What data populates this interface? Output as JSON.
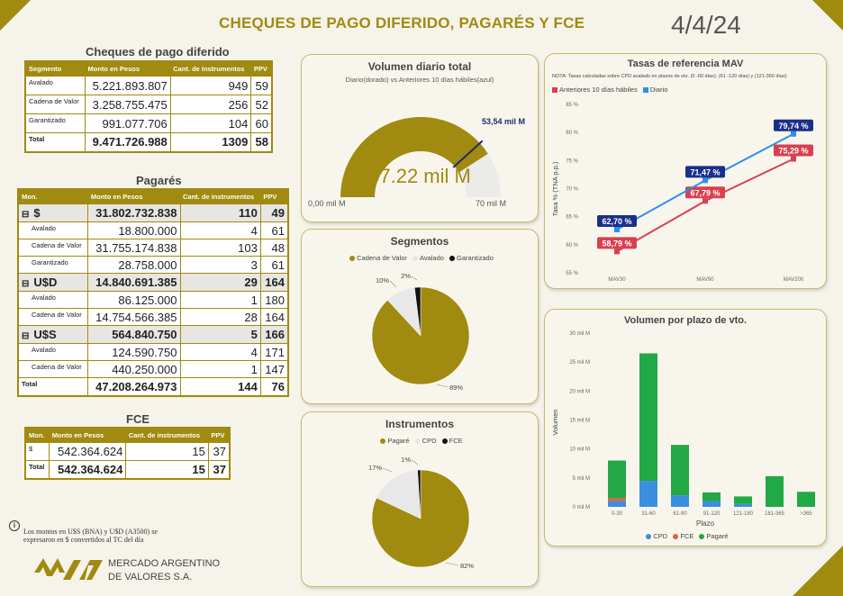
{
  "header": {
    "title": "CHEQUES DE PAGO DIFERIDO, PAGARÉS Y FCE",
    "date": "4/4/24"
  },
  "cpd": {
    "title": "Cheques de pago diferido",
    "headers": [
      "Segmento",
      "Monto en Pesos",
      "Cant. de Instrumentos",
      "PPV"
    ],
    "rows": [
      [
        "Avalado",
        "5.221.893.807",
        "949",
        "59"
      ],
      [
        "Cadena de Valor",
        "3.258.755.475",
        "256",
        "52"
      ],
      [
        "Garantizado",
        "991.077.706",
        "104",
        "60"
      ]
    ],
    "total": [
      "Total",
      "9.471.726.988",
      "1309",
      "58"
    ]
  },
  "pagares": {
    "title": "Pagarés",
    "headers": [
      "Mon.",
      "Monto en Pesos",
      "Cant. de instrumentos",
      "PPV"
    ],
    "groups": [
      {
        "label": "$",
        "amount": "31.802.732.838",
        "count": "110",
        "ppv": "49",
        "rows": [
          [
            "Avalado",
            "18.800.000",
            "4",
            "61"
          ],
          [
            "Cadena de Valor",
            "31.755.174.838",
            "103",
            "48"
          ],
          [
            "Garantizado",
            "28.758.000",
            "3",
            "61"
          ]
        ]
      },
      {
        "label": "U$D",
        "amount": "14.840.691.385",
        "count": "29",
        "ppv": "164",
        "rows": [
          [
            "Avalado",
            "86.125.000",
            "1",
            "180"
          ],
          [
            "Cadena de Valor",
            "14.754.566.385",
            "28",
            "164"
          ]
        ]
      },
      {
        "label": "U$S",
        "amount": "564.840.750",
        "count": "5",
        "ppv": "166",
        "rows": [
          [
            "Avalado",
            "124.590.750",
            "4",
            "171"
          ],
          [
            "Cadena de Valor",
            "440.250.000",
            "1",
            "147"
          ]
        ]
      }
    ],
    "total": [
      "Total",
      "47.208.264.973",
      "144",
      "76"
    ],
    "expand_glyph": "⊟"
  },
  "fce": {
    "title": "FCE",
    "headers": [
      "Mon.",
      "Monto en Pesos",
      "Cant. de instrumentos",
      "PPV"
    ],
    "rows": [
      [
        "$",
        "542.364.624",
        "15",
        "37"
      ]
    ],
    "total": [
      "Total",
      "542.364.624",
      "15",
      "37"
    ]
  },
  "gauge": {
    "title": "Volumen diario total",
    "subtitle": "Diario(dorado) vs Anteriores 10 días hábiles(azul)",
    "value": 57.22,
    "target": 53.54,
    "min": 0,
    "max": 70,
    "value_label": "57.22 mil M",
    "target_label": "53,54 mil M",
    "min_label": "0,00 mil M",
    "max_label": "70 mil M"
  },
  "segmentos": {
    "title": "Segmentos",
    "legend": [
      "Cadena de Valor",
      "Avalado",
      "Garantizado"
    ],
    "colors": [
      "#a08a10",
      "#e8e8e8",
      "#111111"
    ],
    "chart_data": {
      "type": "pie",
      "categories": [
        "Cadena de Valor",
        "Avalado",
        "Garantizado"
      ],
      "values": [
        89,
        10,
        2
      ],
      "labels": [
        "89%",
        "10%",
        "2%"
      ]
    }
  },
  "instrumentos": {
    "title": "Instrumentos",
    "legend": [
      "Pagaré",
      "CPD",
      "FCE"
    ],
    "colors": [
      "#a08a10",
      "#e8e8e8",
      "#111111"
    ],
    "chart_data": {
      "type": "pie",
      "categories": [
        "Pagaré",
        "CPD",
        "FCE"
      ],
      "values": [
        82,
        17,
        1
      ],
      "labels": [
        "82%",
        "17%",
        "1%"
      ]
    }
  },
  "tasas": {
    "title": "Tasas de referencia MAV",
    "note": "NOTA: Tasas calculadas sobre CPD avalado en plazos de vto. (0 -60 días); (61 -120 días) y (121-360 días)",
    "ylabel": "Tasa % (TNA p.p.)",
    "chart_data": {
      "type": "line",
      "categories": [
        "MAV30",
        "MAV90",
        "MAV200"
      ],
      "ylim": [
        55,
        85
      ],
      "yticks": [
        "55 %",
        "60 %",
        "65 %",
        "70 %",
        "75 %",
        "80 %",
        "85 %"
      ],
      "series": [
        {
          "name": "Anteriores 10 días hábiles",
          "values": [
            58.79,
            67.79,
            75.29
          ],
          "labels": [
            "58,79 %",
            "67,79 %",
            "75,29 %"
          ],
          "color": "#d8404f"
        },
        {
          "name": "Diario",
          "values": [
            62.7,
            71.47,
            79.74
          ],
          "labels": [
            "62,70 %",
            "71,47 %",
            "79,74 %"
          ],
          "color": "#2a8ff0"
        }
      ]
    }
  },
  "plazo": {
    "title": "Volumen por plazo de vto.",
    "ylabel": "Volumen",
    "xlabel": "Plazo",
    "chart_data": {
      "type": "bar",
      "stacked": true,
      "categories": [
        "0-30",
        "31-60",
        "61-90",
        "91-120",
        "121-180",
        "181-365",
        ">365"
      ],
      "ylim": [
        0,
        30
      ],
      "yticks": [
        "0 mil M",
        "5 mil M",
        "10 mil M",
        "15 mil M",
        "20 mil M",
        "25 mil M",
        "30 mil M"
      ],
      "series": [
        {
          "name": "CPD",
          "values": [
            1.0,
            4.5,
            2.0,
            1.0,
            0.5,
            0,
            0
          ],
          "color": "#3b8fe0"
        },
        {
          "name": "FCE",
          "values": [
            0.5,
            0,
            0,
            0,
            0,
            0,
            0
          ],
          "color": "#e3603a"
        },
        {
          "name": "Pagaré",
          "values": [
            6.5,
            22.0,
            8.7,
            1.5,
            1.3,
            5.3,
            2.6
          ],
          "color": "#22a845"
        }
      ]
    }
  },
  "footer": {
    "note_line1": "Los montos en U$S (BNA) y U$D (A3500) se",
    "note_line2": "expresaron en $ convertidos al TC del día",
    "company_line1": "MERCADO ARGENTINO",
    "company_line2": "DE VALORES S.A."
  }
}
